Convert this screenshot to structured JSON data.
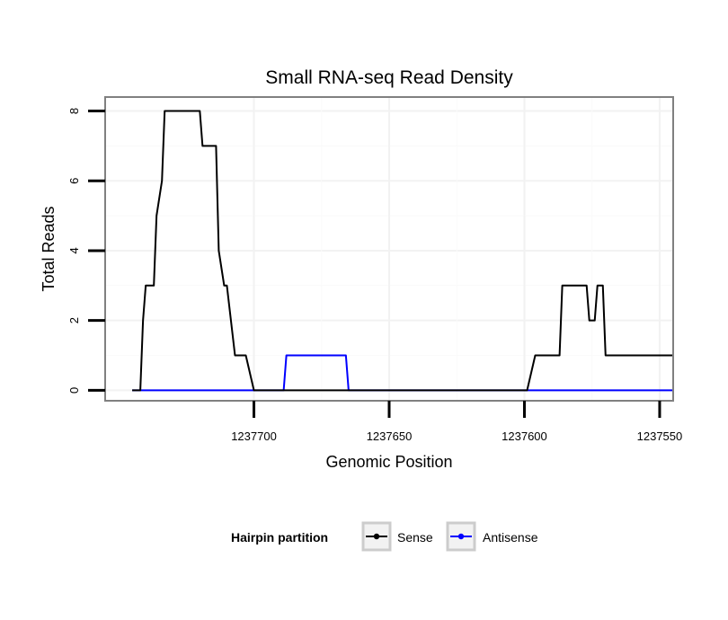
{
  "chart_data": {
    "type": "line",
    "title": "Small RNA-seq Read Density",
    "xlabel": "Genomic Position",
    "ylabel": "Total Reads",
    "x_reversed": true,
    "xlim": [
      1237755,
      1237545
    ],
    "ylim": [
      -0.3,
      8.4
    ],
    "x_ticks": [
      1237700,
      1237650,
      1237600,
      1237550
    ],
    "x_tick_labels": [
      "1237700",
      "1237650",
      "1237600",
      "1237550"
    ],
    "y_ticks": [
      0,
      2,
      4,
      6,
      8
    ],
    "y_tick_labels": [
      "0",
      "2",
      "4",
      "6",
      "8"
    ],
    "grid": true,
    "legend": {
      "title": "Hairpin partition",
      "position": "bottom"
    },
    "series": [
      {
        "name": "Sense",
        "color": "#000000",
        "x": [
          1237745,
          1237742,
          1237741,
          1237740,
          1237739,
          1237737,
          1237736,
          1237734,
          1237733,
          1237720,
          1237719,
          1237714,
          1237713,
          1237711,
          1237710,
          1237707,
          1237706,
          1237703,
          1237700,
          1237599,
          1237596,
          1237587,
          1237586,
          1237577,
          1237576,
          1237574,
          1237573,
          1237571,
          1237570,
          1237545
        ],
        "y": [
          0,
          0,
          2,
          3,
          3,
          3,
          5,
          6,
          8,
          8,
          7,
          7,
          4,
          3,
          3,
          1,
          1,
          1,
          0,
          0,
          1,
          1,
          3,
          3,
          2,
          2,
          3,
          3,
          1,
          1
        ]
      },
      {
        "name": "Antisense",
        "color": "#0000ff",
        "x": [
          1237745,
          1237689,
          1237688,
          1237666,
          1237665,
          1237545
        ],
        "y": [
          0,
          0,
          1,
          1,
          0,
          0
        ]
      }
    ]
  }
}
